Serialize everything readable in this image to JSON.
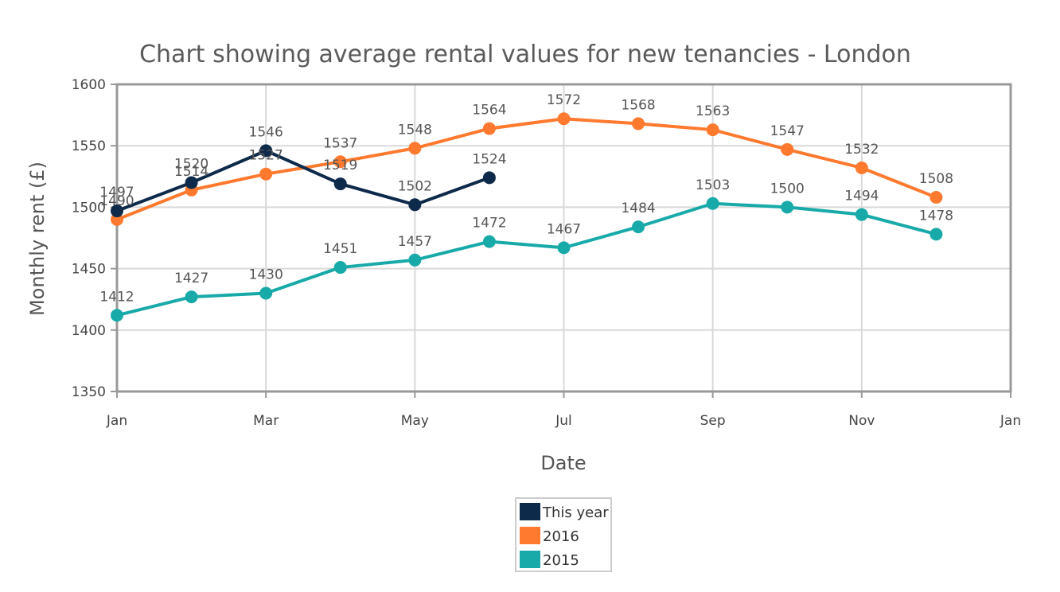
{
  "chart_data": {
    "type": "line",
    "title": "Chart showing average rental values for new tenancies - London",
    "xlabel": "Date",
    "ylabel": "Monthly rent (£)",
    "x_ticks": [
      "Jan",
      "Mar",
      "May",
      "Jul",
      "Sep",
      "Nov",
      "Jan"
    ],
    "ylim": [
      1350,
      1600
    ],
    "y_ticks": [
      1350,
      1400,
      1450,
      1500,
      1550,
      1600
    ],
    "grid": true,
    "legend_position": "bottom-center",
    "series": [
      {
        "name": "This year",
        "color": "#0e2a4a",
        "months": [
          "Jan",
          "Feb",
          "Mar",
          "Apr",
          "May",
          "Jun"
        ],
        "values": [
          1497,
          1520,
          1546,
          1519,
          1502,
          1524
        ]
      },
      {
        "name": "2016",
        "color": "#ff7a2f",
        "months": [
          "Jan",
          "Feb",
          "Mar",
          "Apr",
          "May",
          "Jun",
          "Jul",
          "Aug",
          "Sep",
          "Oct",
          "Nov",
          "Dec"
        ],
        "values": [
          1490,
          1514,
          1527,
          1537,
          1548,
          1564,
          1572,
          1568,
          1563,
          1547,
          1532,
          1508
        ]
      },
      {
        "name": "2015",
        "color": "#17aaa8",
        "months": [
          "Jan",
          "Feb",
          "Mar",
          "Apr",
          "May",
          "Jun",
          "Jul",
          "Aug",
          "Sep",
          "Oct",
          "Nov",
          "Dec"
        ],
        "values": [
          1412,
          1427,
          1430,
          1451,
          1457,
          1472,
          1467,
          1484,
          1503,
          1500,
          1494,
          1478
        ]
      }
    ]
  }
}
